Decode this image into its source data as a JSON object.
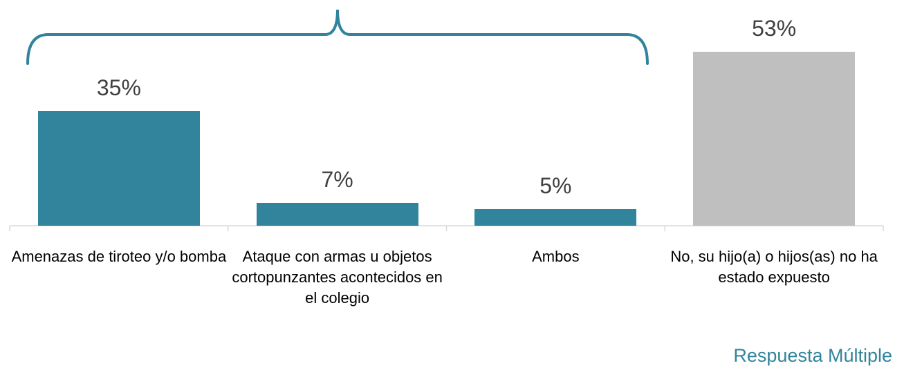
{
  "chart_data": {
    "type": "bar",
    "categories": [
      "Amenazas de tiroteo y/o bomba",
      "Ataque con armas u objetos cortopunzantes acontecidos en el colegio",
      "Ambos",
      "No, su hijo(a) o hijos(as) no ha estado expuesto"
    ],
    "values": [
      35,
      7,
      5,
      53
    ],
    "value_labels": [
      "35%",
      "7%",
      "5%",
      "53%"
    ],
    "colors": [
      "#31849b",
      "#31849b",
      "#31849b",
      "#bfbfbf"
    ],
    "annotation": "Respuesta Múltiple"
  }
}
